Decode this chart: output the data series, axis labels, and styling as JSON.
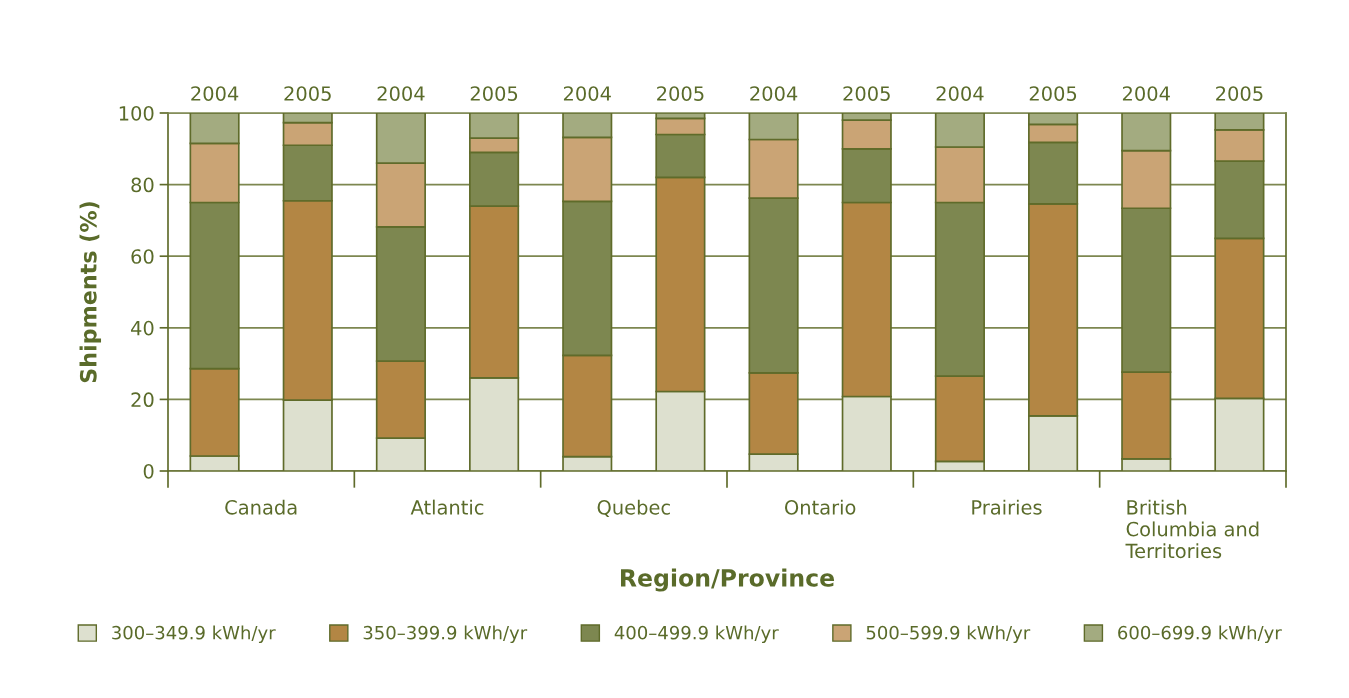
{
  "chart_data": {
    "type": "bar",
    "stacked": true,
    "xlabel": "Region/Province",
    "ylabel": "Shipments (%)",
    "categories": [
      "2004",
      "2005",
      "2004",
      "2005",
      "2004",
      "2005",
      "2004",
      "2005",
      "2004",
      "2005",
      "2004",
      "2005"
    ],
    "annotations": [
      "Canada",
      "Atlantic",
      "Quebec",
      "Ontario",
      "Prairies",
      "British\nColumbia and\nTerritories"
    ],
    "ylim": [
      0,
      100
    ],
    "yticks": [
      0,
      20,
      40,
      60,
      80,
      100
    ],
    "grid": "y",
    "legend": "bottom",
    "series": [
      {
        "name": "300–349.9 kWh/yr",
        "color": "#dde0cf",
        "values": [
          4.2,
          19.8,
          9.2,
          26,
          4,
          22.2,
          4.7,
          20.8,
          2.7,
          15.4,
          3.4,
          20.3
        ]
      },
      {
        "name": "350–399.9 kWh/yr",
        "color": "#b38644",
        "values": [
          24.4,
          55.7,
          21.5,
          48,
          28.3,
          59.8,
          22.7,
          54.2,
          23.8,
          59.2,
          24.2,
          44.7
        ]
      },
      {
        "name": "400–499.9 kWh/yr",
        "color": "#7d8750",
        "values": [
          46.4,
          15.5,
          37.5,
          15,
          43,
          12,
          48.8,
          15,
          48.5,
          17.2,
          45.8,
          21.6
        ]
      },
      {
        "name": "500–599.9 kWh/yr",
        "color": "#caa475",
        "values": [
          16.5,
          6.3,
          17.8,
          4,
          17.9,
          4.5,
          16.4,
          8,
          15.5,
          5,
          16.1,
          8.7
        ]
      },
      {
        "name": "600–699.9 kWh/yr",
        "color": "#a3ab80",
        "values": [
          8.5,
          2.7,
          14,
          7,
          6.8,
          1.5,
          7.4,
          2,
          9.5,
          3.2,
          10.5,
          4.7
        ]
      }
    ]
  }
}
